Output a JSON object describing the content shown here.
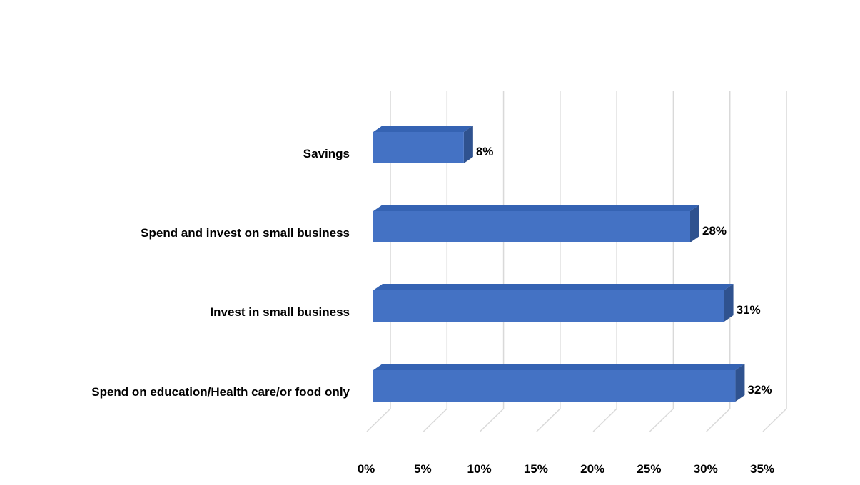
{
  "chart_data": {
    "type": "bar",
    "orientation": "horizontal",
    "style": "3d",
    "title": "",
    "xlabel": "",
    "ylabel": "",
    "categories": [
      "Savings",
      "Spend and invest on small business",
      "Invest in small business",
      "Spend on education/Health care/or food only"
    ],
    "values": [
      8,
      28,
      31,
      32
    ],
    "data_labels": [
      "8%",
      "28%",
      "31%",
      "32%"
    ],
    "xlim": [
      0,
      35
    ],
    "x_ticks": [
      0,
      5,
      10,
      15,
      20,
      25,
      30,
      35
    ],
    "x_tick_labels": [
      "0%",
      "5%",
      "10%",
      "15%",
      "20%",
      "25%",
      "30%",
      "35%"
    ],
    "grid": "vertical",
    "legend": "none",
    "colors": {
      "bar_front": "#4472c4",
      "bar_top": "#3563b3",
      "bar_side": "#2f528f",
      "gridline": "#d9d9d9"
    }
  }
}
